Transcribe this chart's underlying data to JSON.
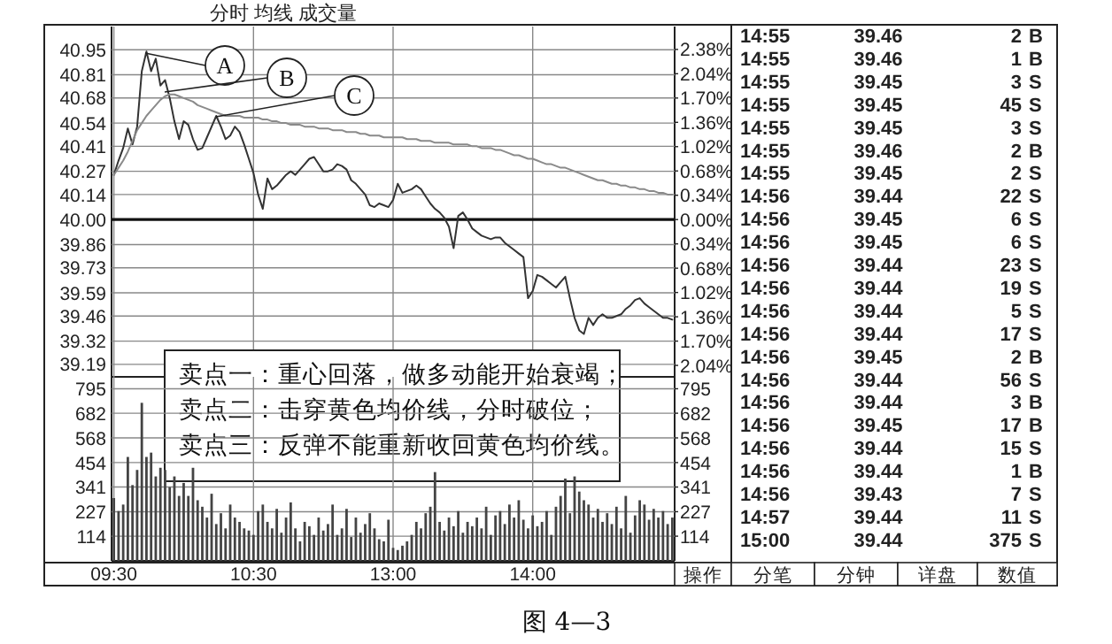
{
  "chart_data": [
    {
      "type": "line",
      "title": "分时 均线 成交量",
      "categories": [
        null,
        null,
        null,
        null,
        null,
        null,
        null,
        null,
        null,
        null,
        null,
        null,
        null,
        null,
        null,
        null,
        null,
        null,
        null,
        null,
        null,
        null,
        null,
        null,
        null,
        null,
        null,
        null,
        null,
        null,
        null,
        null,
        null,
        null,
        null,
        null,
        null,
        null,
        null,
        null,
        null,
        null,
        null,
        null,
        null,
        null,
        null,
        null,
        null,
        null,
        null,
        null,
        null,
        null,
        null,
        null,
        null,
        null,
        null,
        null,
        null,
        null,
        null,
        null,
        null,
        null,
        null,
        null,
        null,
        null,
        null,
        null,
        null,
        null,
        null,
        null,
        null,
        null,
        null,
        null,
        null,
        null,
        null,
        null,
        null,
        null,
        null,
        null,
        null,
        null,
        null,
        null,
        null,
        null,
        null,
        null,
        null,
        null,
        null,
        null,
        null,
        null,
        null,
        null,
        null,
        null,
        null,
        null,
        null,
        null,
        null,
        null,
        null,
        null,
        null,
        null,
        null,
        null,
        null,
        null,
        null
      ],
      "ylim": [
        39.12,
        41.08
      ],
      "yticks": [
        40.95,
        40.81,
        40.68,
        40.54,
        40.41,
        40.27,
        40.14,
        {
          "value": 40,
          "label": "40.00"
        },
        39.86,
        39.73,
        39.59,
        39.46,
        39.32,
        39.19
      ],
      "y2lim": [
        -2.2,
        2.7
      ],
      "y2ticks": [
        {
          "value": 2.38,
          "label": "2.38%"
        },
        {
          "value": 2.04,
          "label": "2.04%"
        },
        {
          "value": 1.7,
          "label": "1.70%"
        },
        {
          "value": 1.36,
          "label": "1.36%"
        },
        {
          "value": 1.02,
          "label": "1.02%"
        },
        {
          "value": 0.68,
          "label": "0.68%"
        },
        {
          "value": 0.34,
          "label": "0.34%"
        },
        {
          "value": 0,
          "label": "0.00%"
        },
        {
          "value": -0.34,
          "label": "0.34%"
        },
        {
          "value": -0.68,
          "label": "0.68%"
        },
        {
          "value": -1.02,
          "label": "1.02%"
        },
        {
          "value": -1.36,
          "label": "1.36%"
        },
        {
          "value": -1.7,
          "label": "1.70%"
        },
        {
          "value": -2.04,
          "label": "2.04%"
        }
      ],
      "tick_labels": "y",
      "grid": true,
      "ref_lines": [
        {
          "axis": "y",
          "value": 40
        }
      ],
      "series": [
        {
          "color": "#333333",
          "values": [
            40.25,
            40.33,
            40.4,
            40.51,
            40.42,
            40.52,
            40.83,
            40.94,
            40.83,
            40.9,
            40.75,
            40.78,
            40.68,
            40.55,
            40.45,
            40.55,
            40.53,
            40.45,
            40.39,
            40.4,
            40.46,
            40.52,
            40.58,
            40.52,
            40.45,
            40.47,
            40.52,
            40.49,
            40.42,
            40.34,
            40.26,
            40.14,
            40.06,
            40.23,
            40.17,
            40.19,
            40.22,
            40.25,
            40.27,
            40.25,
            40.28,
            40.31,
            40.34,
            40.35,
            40.31,
            40.27,
            40.27,
            40.28,
            40.31,
            40.3,
            40.28,
            40.22,
            40.2,
            40.17,
            40.14,
            40.08,
            40.07,
            40.09,
            40.08,
            40.07,
            40.11,
            40.2,
            40.15,
            40.16,
            40.17,
            40.19,
            40.17,
            40.13,
            40.09,
            40.06,
            40.04,
            40.01,
            39.96,
            39.84,
            40.02,
            40.04,
            40.0,
            39.95,
            39.93,
            39.91,
            39.9,
            39.89,
            39.9,
            39.9,
            39.87,
            39.85,
            39.83,
            39.81,
            39.79,
            39.56,
            39.6,
            39.69,
            39.68,
            39.66,
            39.64,
            39.62,
            39.65,
            39.68,
            39.56,
            39.45,
            39.38,
            39.36,
            39.45,
            39.41,
            39.45,
            39.47,
            39.45,
            39.45,
            39.46,
            39.47,
            39.5,
            39.52,
            39.55,
            39.56,
            39.53,
            39.51,
            39.49,
            39.47,
            39.45,
            39.45,
            39.44
          ]
        },
        {
          "color": "#8a8a8a",
          "values": [
            40.25,
            40.29,
            40.33,
            40.38,
            40.44,
            40.5,
            40.54,
            40.58,
            40.61,
            40.64,
            40.67,
            40.69,
            40.7,
            40.7,
            40.69,
            40.68,
            40.67,
            40.66,
            40.64,
            40.63,
            40.62,
            40.61,
            40.6,
            40.59,
            40.58,
            40.58,
            40.58,
            40.58,
            40.57,
            40.57,
            40.57,
            40.57,
            40.56,
            40.56,
            40.55,
            40.55,
            40.54,
            40.54,
            40.53,
            40.53,
            40.53,
            40.52,
            40.52,
            40.52,
            40.51,
            40.51,
            40.51,
            40.5,
            40.5,
            40.5,
            40.49,
            40.49,
            40.49,
            40.48,
            40.48,
            40.47,
            40.47,
            40.47,
            40.46,
            40.46,
            40.46,
            40.46,
            40.46,
            40.45,
            40.45,
            40.45,
            40.44,
            40.44,
            40.44,
            40.43,
            40.43,
            40.43,
            40.43,
            40.42,
            40.42,
            40.42,
            40.42,
            40.41,
            40.41,
            40.4,
            40.4,
            40.4,
            40.39,
            40.39,
            40.38,
            40.37,
            40.36,
            40.36,
            40.35,
            40.34,
            40.34,
            40.33,
            40.32,
            40.31,
            40.31,
            40.3,
            40.29,
            40.29,
            40.28,
            40.27,
            40.26,
            40.25,
            40.24,
            40.23,
            40.22,
            40.22,
            40.21,
            40.2,
            40.2,
            40.19,
            40.19,
            40.18,
            40.18,
            40.17,
            40.17,
            40.16,
            40.16,
            40.15,
            40.15,
            40.14,
            40.14
          ]
        }
      ],
      "annotations": [
        "A",
        "B",
        "C",
        "卖点一：重心回落，做多动能开始衰竭；",
        "卖点二：击穿黄色均价线，分时破位；",
        "卖点三：反弹不能重新收回黄色均价线。"
      ]
    },
    {
      "type": "bar",
      "categories": [
        "09:30",
        null,
        null,
        null,
        null,
        null,
        null,
        null,
        null,
        null,
        null,
        null,
        null,
        null,
        null,
        null,
        null,
        null,
        null,
        null,
        null,
        null,
        null,
        null,
        null,
        null,
        null,
        null,
        null,
        null,
        "10:30",
        null,
        null,
        null,
        null,
        null,
        null,
        null,
        null,
        null,
        null,
        null,
        null,
        null,
        null,
        null,
        null,
        null,
        null,
        null,
        null,
        null,
        null,
        null,
        null,
        null,
        null,
        null,
        null,
        null,
        "13:00",
        null,
        null,
        null,
        null,
        null,
        null,
        null,
        null,
        null,
        null,
        null,
        null,
        null,
        null,
        null,
        null,
        null,
        null,
        null,
        null,
        null,
        null,
        null,
        null,
        null,
        null,
        null,
        null,
        null,
        "14:00",
        null,
        null,
        null,
        null,
        null,
        null,
        null,
        null,
        null,
        null,
        null,
        null,
        null,
        null,
        null,
        null,
        null,
        null,
        null,
        null,
        null,
        null,
        null,
        null,
        null,
        null,
        null,
        null,
        null,
        null
      ],
      "ylim": [
        0,
        850
      ],
      "yticks": [
        795,
        682,
        568,
        454,
        341,
        227,
        114
      ],
      "y2lim": [
        0,
        850
      ],
      "y2ticks": [
        795,
        682,
        568,
        454,
        341,
        227,
        114
      ],
      "grid": true,
      "series": [
        {
          "color": "#444444",
          "values": [
            290,
            230,
            260,
            480,
            350,
            420,
            730,
            480,
            500,
            390,
            430,
            420,
            340,
            390,
            300,
            360,
            300,
            430,
            280,
            250,
            200,
            310,
            170,
            220,
            150,
            260,
            200,
            180,
            150,
            140,
            120,
            230,
            260,
            180,
            150,
            240,
            130,
            200,
            270,
            150,
            90,
            180,
            160,
            120,
            200,
            140,
            170,
            260,
            120,
            150,
            240,
            110,
            200,
            130,
            170,
            220,
            150,
            100,
            90,
            190,
            60,
            50,
            70,
            90,
            120,
            180,
            150,
            220,
            250,
            410,
            180,
            140,
            200,
            160,
            230,
            130,
            180,
            160,
            200,
            150,
            250,
            120,
            210,
            230,
            170,
            260,
            200,
            280,
            190,
            150,
            210,
            160,
            180,
            230,
            120,
            250,
            300,
            380,
            220,
            390,
            320,
            280,
            260,
            200,
            240,
            180,
            220,
            170,
            250,
            150,
            300,
            130,
            210,
            280,
            260,
            190,
            240,
            200,
            230,
            170,
            200
          ]
        }
      ],
      "annotations": [
        "图 4—3"
      ]
    },
    {
      "type": "other",
      "annotations": [
        "14:55 39.46 2 B",
        "14:55 39.46 1 B",
        "14:55 39.45 3 S",
        "14:55 39.45 45 S",
        "14:55 39.45 3 S",
        "14:55 39.46 2 B",
        "14:55 39.45 2 S",
        "14:56 39.44 22 S",
        "14:56 39.45 6 S",
        "14:56 39.45 6 S",
        "14:56 39.44 23 S",
        "14:56 39.44 19 S",
        "14:56 39.44 5 S",
        "14:56 39.44 17 S",
        "14:56 39.45 2 B",
        "14:56 39.44 56 S",
        "14:56 39.44 3 B",
        "14:56 39.45 17 B",
        "14:56 39.44 15 S",
        "14:56 39.44 1 B",
        "14:56 39.43 7 S",
        "14:57 39.44 11 S",
        "15:00 39.44 375 S",
        "操作",
        "分笔",
        "分钟",
        "详盘",
        "数值"
      ]
    }
  ]
}
